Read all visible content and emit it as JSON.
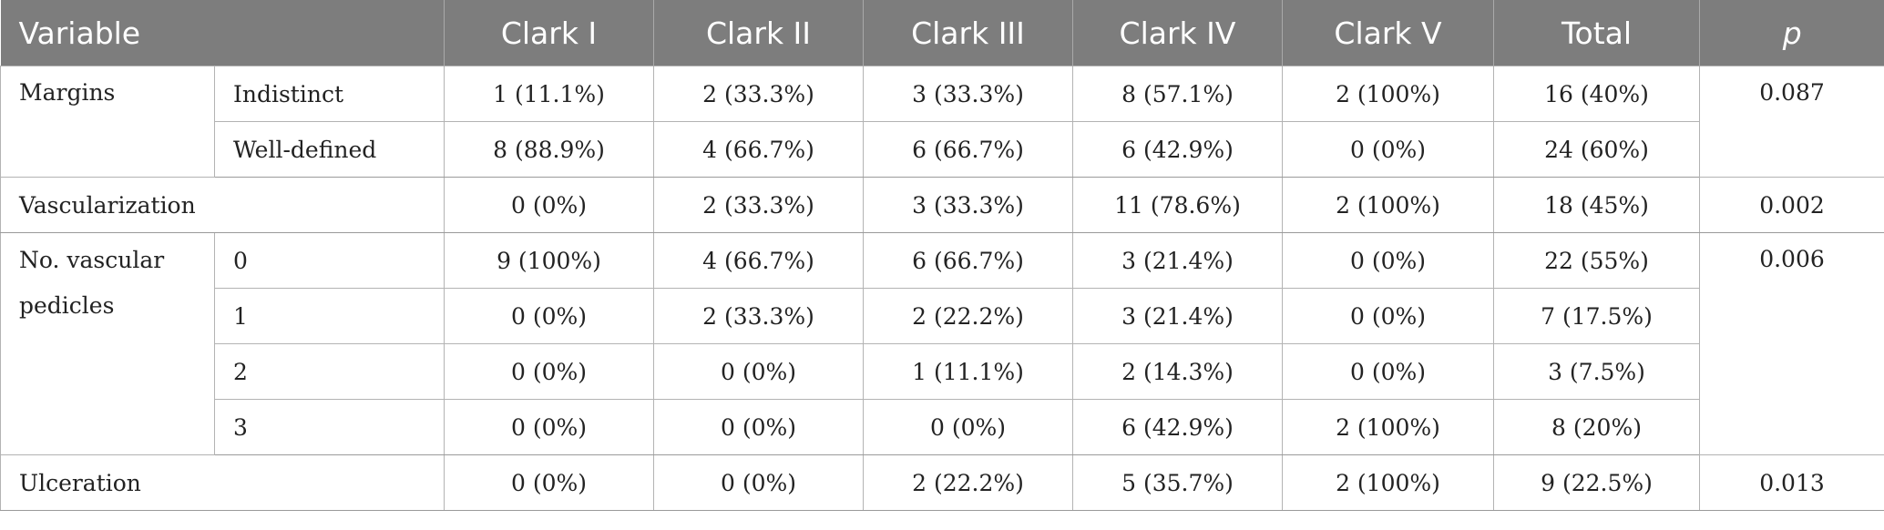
{
  "header": {
    "variable": "Variable",
    "clark1": "Clark I",
    "clark2": "Clark II",
    "clark3": "Clark III",
    "clark4": "Clark IV",
    "clark5": "Clark V",
    "total": "Total",
    "p": "p"
  },
  "margins": {
    "label": "Margins",
    "p": "0.087",
    "rows": [
      {
        "label": "Indistinct",
        "cells": [
          "1 (11.1%)",
          "2 (33.3%)",
          "3 (33.3%)",
          "8 (57.1%)",
          "2 (100%)",
          "16 (40%)"
        ]
      },
      {
        "label": "Well-defined",
        "cells": [
          "8 (88.9%)",
          "4 (66.7%)",
          "6 (66.7%)",
          "6 (42.9%)",
          "0 (0%)",
          "24 (60%)"
        ]
      }
    ]
  },
  "vascularization": {
    "label": "Vascularization",
    "p": "0.002",
    "cells": [
      "0 (0%)",
      "2 (33.3%)",
      "3 (33.3%)",
      "11 (78.6%)",
      "2 (100%)",
      "18 (45%)"
    ]
  },
  "pedicles": {
    "label": "No. vascular pedicles",
    "p": "0.006",
    "rows": [
      {
        "label": "0",
        "cells": [
          "9 (100%)",
          "4 (66.7%)",
          "6 (66.7%)",
          "3 (21.4%)",
          "0 (0%)",
          "22 (55%)"
        ]
      },
      {
        "label": "1",
        "cells": [
          "0 (0%)",
          "2 (33.3%)",
          "2 (22.2%)",
          "3 (21.4%)",
          "0 (0%)",
          "7 (17.5%)"
        ]
      },
      {
        "label": "2",
        "cells": [
          "0 (0%)",
          "0 (0%)",
          "1 (11.1%)",
          "2 (14.3%)",
          "0 (0%)",
          "3 (7.5%)"
        ]
      },
      {
        "label": "3",
        "cells": [
          "0 (0%)",
          "0 (0%)",
          "0 (0%)",
          "6 (42.9%)",
          "2 (100%)",
          "8 (20%)"
        ]
      }
    ]
  },
  "ulceration": {
    "label": "Ulceration",
    "p": "0.013",
    "cells": [
      "0 (0%)",
      "0 (0%)",
      "2 (22.2%)",
      "5 (35.7%)",
      "2 (100%)",
      "9 (22.5%)"
    ]
  }
}
